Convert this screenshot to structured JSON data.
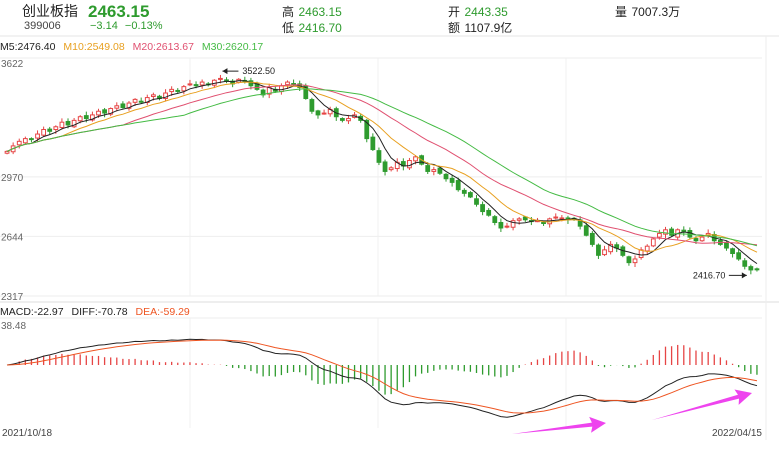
{
  "header": {
    "name": "创业板指",
    "code": "399006",
    "price": "2463.15",
    "change": "−3.14",
    "change_pct": "−0.13%",
    "high_label": "高",
    "high": "2463.15",
    "low_label": "低",
    "low": "2416.70",
    "open_label": "开",
    "open": "2443.35",
    "amount_label": "额",
    "amount": "1107.9亿",
    "volume_label": "量",
    "volume": "7007.3万"
  },
  "legend_ma": {
    "ma5": "M5:2476.40",
    "ma10": "M10:2549.08",
    "ma20": "M20:2613.67",
    "ma30": "M30:2620.17"
  },
  "legend_macd": {
    "macd": "MACD:-22.97",
    "diff": "DIFF:-70.78",
    "dea": "DEA:-59.29"
  },
  "colors": {
    "up": "#e64545",
    "down": "#2e9b2e",
    "ma5": "#222222",
    "ma10": "#e8a020",
    "ma20": "#e05070",
    "ma30": "#44bb44",
    "dif": "#222222",
    "dea": "#ee5522",
    "arrow": "#ee44ee"
  },
  "chart_data": {
    "type": "candlestick",
    "y_ticks": [
      "3622",
      "2970",
      "2644",
      "2317"
    ],
    "ylim": [
      2317,
      3622
    ],
    "macd_tick": "38.48",
    "x_start": "2021/10/18",
    "x_end": "2022/04/15",
    "annotations": {
      "max": "3522.50",
      "min": "2416.70"
    },
    "close": [
      3110,
      3140,
      3165,
      3180,
      3175,
      3205,
      3230,
      3220,
      3245,
      3270,
      3255,
      3280,
      3300,
      3290,
      3310,
      3330,
      3320,
      3345,
      3360,
      3350,
      3375,
      3395,
      3380,
      3405,
      3420,
      3400,
      3430,
      3450,
      3440,
      3465,
      3480,
      3470,
      3490,
      3475,
      3500,
      3510,
      3495,
      3480,
      3505,
      3495,
      3470,
      3450,
      3420,
      3460,
      3440,
      3470,
      3490,
      3480,
      3460,
      3400,
      3330,
      3310,
      3320,
      3340,
      3300,
      3280,
      3290,
      3310,
      3280,
      3180,
      3120,
      3050,
      3000,
      3020,
      3050,
      3030,
      3060,
      3080,
      3040,
      3000,
      3010,
      2990,
      2960,
      2940,
      2900,
      2880,
      2860,
      2820,
      2780,
      2760,
      2720,
      2690,
      2700,
      2730,
      2740,
      2735,
      2725,
      2730,
      2715,
      2740,
      2750,
      2745,
      2735,
      2740,
      2700,
      2650,
      2600,
      2540,
      2570,
      2600,
      2580,
      2540,
      2500,
      2520,
      2570,
      2590,
      2630,
      2660,
      2680,
      2650,
      2680,
      2670,
      2640,
      2620,
      2640,
      2660,
      2620,
      2600,
      2580,
      2550,
      2520,
      2480,
      2460,
      2463
    ],
    "ma5_end": 2476.4,
    "ma10_end": 2549.08,
    "ma20_end": 2613.67,
    "ma30_end": 2620.17,
    "dif_end": -70.78,
    "dea_end": -59.29,
    "macd_end": -22.97
  }
}
